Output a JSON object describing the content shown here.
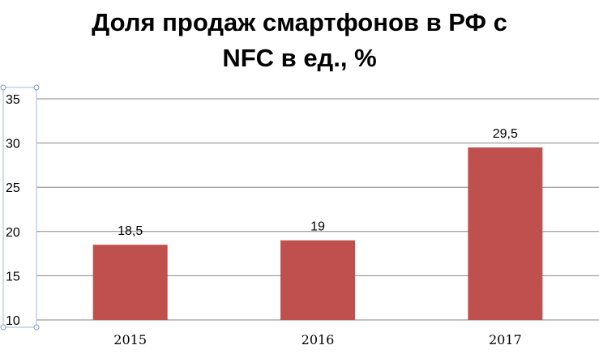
{
  "chart_data": {
    "type": "bar",
    "title_line1": "Доля продаж смартфонов в РФ с",
    "title_line2": "NFC в ед., %",
    "categories": [
      "2015",
      "2016",
      "2017"
    ],
    "values": [
      18.5,
      19,
      29.5
    ],
    "data_labels": [
      "18,5",
      "19",
      "29,5"
    ],
    "ylim": [
      10,
      35
    ],
    "yticks": [
      10,
      15,
      20,
      25,
      30,
      35
    ],
    "grid": true,
    "legend": "none",
    "bar_color": "#c0504d",
    "grid_color": "#868686"
  }
}
